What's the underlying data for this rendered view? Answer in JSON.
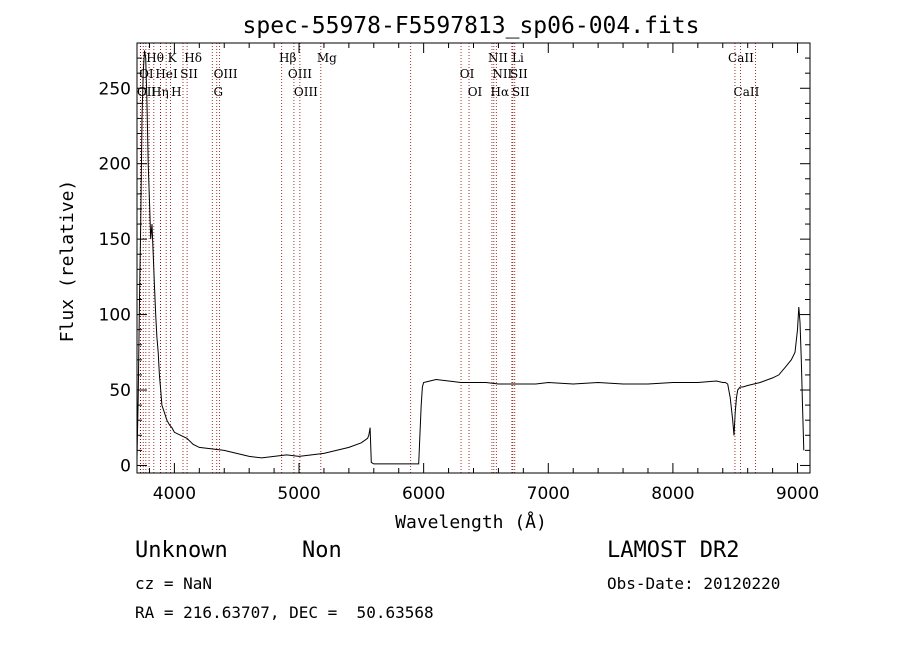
{
  "chart_data": {
    "type": "line",
    "title": "spec-55978-F5597813_sp06-004.fits",
    "xlabel": "Wavelength (Å)",
    "ylabel": "Flux (relative)",
    "xlim": [
      3700,
      9100
    ],
    "ylim": [
      -5,
      280
    ],
    "xticks": [
      4000,
      5000,
      6000,
      7000,
      8000,
      9000
    ],
    "yticks": [
      0,
      50,
      100,
      150,
      200,
      250
    ],
    "series": [
      {
        "x": [
          3700,
          3710,
          3720,
          3730,
          3740,
          3750,
          3760,
          3770,
          3780,
          3790,
          3800,
          3810,
          3820,
          3830,
          3840,
          3850,
          3860,
          3870,
          3880,
          3890,
          3900,
          3920,
          3940,
          3960,
          3980,
          4000,
          4050,
          4100,
          4150,
          4200,
          4300,
          4400,
          4500,
          4600,
          4700,
          4800,
          4900,
          5000,
          5100,
          5200,
          5300,
          5400,
          5500,
          5550,
          5560,
          5570,
          5580,
          5600,
          5700,
          5800,
          5900,
          5960,
          5970,
          5980,
          5990,
          6000,
          6050,
          6100,
          6200,
          6300,
          6400,
          6500,
          6600,
          6700,
          6800,
          6900,
          7000,
          7200,
          7400,
          7600,
          7800,
          8000,
          8200,
          8350,
          8400,
          8420,
          8440,
          8460,
          8480,
          8490,
          8500,
          8510,
          8520,
          8540,
          8560,
          8600,
          8700,
          8800,
          8850,
          8900,
          8950,
          8980,
          9000,
          9010,
          9020,
          9030,
          9040,
          9050
        ],
        "y": [
          5,
          45,
          110,
          160,
          230,
          260,
          275,
          270,
          240,
          200,
          175,
          150,
          160,
          140,
          120,
          100,
          85,
          75,
          60,
          50,
          40,
          35,
          30,
          27,
          25,
          22,
          20,
          18,
          14,
          12,
          11,
          10,
          8,
          6,
          5,
          6,
          7,
          6,
          7,
          8,
          10,
          12,
          15,
          18,
          20,
          25,
          2,
          1,
          1,
          1,
          1,
          1,
          20,
          40,
          52,
          55,
          56,
          57,
          56,
          55,
          55,
          55,
          54,
          54,
          54,
          54,
          55,
          54,
          55,
          54,
          54,
          55,
          55,
          56,
          55,
          55,
          54,
          45,
          30,
          20,
          35,
          45,
          50,
          52,
          52,
          53,
          55,
          58,
          60,
          65,
          70,
          75,
          90,
          105,
          95,
          70,
          40,
          10
        ]
      }
    ],
    "line_markers": [
      {
        "row": 1,
        "label": "Hθ",
        "x": 3797
      },
      {
        "row": 1,
        "label": "K",
        "x": 3934
      },
      {
        "row": 1,
        "label": "Hδ",
        "x": 4102
      },
      {
        "row": 1,
        "label": "Hβ",
        "x": 4861
      },
      {
        "row": 1,
        "label": "Mg",
        "x": 5175
      },
      {
        "row": 1,
        "label": "NII",
        "x": 6548
      },
      {
        "row": 1,
        "label": "Li",
        "x": 6708
      },
      {
        "row": 1,
        "label": "CaII",
        "x": 8498
      },
      {
        "row": 2,
        "label": "OI",
        "x": 3727
      },
      {
        "row": 2,
        "label": "HeI",
        "x": 3889
      },
      {
        "row": 2,
        "label": "SII",
        "x": 4069
      },
      {
        "row": 2,
        "label": "OIII",
        "x": 4363
      },
      {
        "row": 2,
        "label": "OIII",
        "x": 4959
      },
      {
        "row": 2,
        "label": "OI",
        "x": 6300
      },
      {
        "row": 2,
        "label": "NII",
        "x": 6583
      },
      {
        "row": 2,
        "label": "SII",
        "x": 6716
      },
      {
        "row": 3,
        "label": "OII",
        "x": 3729
      },
      {
        "row": 3,
        "label": "Hη",
        "x": 3835
      },
      {
        "row": 3,
        "label": "H",
        "x": 3968
      },
      {
        "row": 3,
        "label": "G",
        "x": 4304
      },
      {
        "row": 3,
        "label": "OIII",
        "x": 5007
      },
      {
        "row": 3,
        "label": "OI",
        "x": 6364
      },
      {
        "row": 3,
        "label": "Hα",
        "x": 6563
      },
      {
        "row": 3,
        "label": "SII",
        "x": 6731
      },
      {
        "row": 3,
        "label": "CaII",
        "x": 8542
      }
    ],
    "extra_line_x": [
      3750,
      3771,
      3889,
      4340,
      5896,
      8662
    ],
    "colors": {
      "data": "#000000",
      "marker": "#8b0000",
      "frame": "#000000"
    }
  },
  "info": {
    "object_class": "Unknown",
    "subclass": "Non",
    "survey": "LAMOST DR2",
    "cz": "cz = NaN",
    "obs_date": "Obs-Date: 20120220",
    "coords": "RA = 216.63707, DEC =  50.63568"
  }
}
